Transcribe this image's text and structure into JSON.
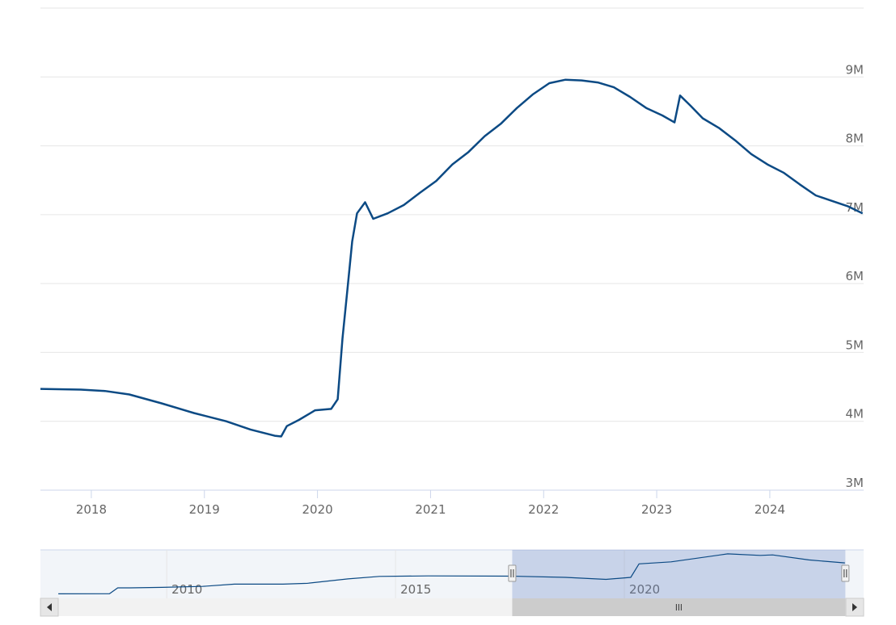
{
  "chart_data": {
    "type": "line",
    "x": [
      2017.55,
      2017.907,
      2018.121,
      2018.336,
      2018.621,
      2018.907,
      2019.193,
      2019.407,
      2019.621,
      2019.679,
      2019.729,
      2019.836,
      2019.979,
      2020.121,
      2020.179,
      2020.221,
      2020.264,
      2020.307,
      2020.35,
      2020.421,
      2020.493,
      2020.621,
      2020.764,
      2020.907,
      2021.05,
      2021.193,
      2021.336,
      2021.479,
      2021.621,
      2021.764,
      2021.907,
      2022.05,
      2022.193,
      2022.336,
      2022.479,
      2022.621,
      2022.764,
      2022.907,
      2023.05,
      2023.157,
      2023.207,
      2023.3,
      2023.407,
      2023.55,
      2023.693,
      2023.836,
      2023.979,
      2024.121,
      2024.264,
      2024.407,
      2024.55,
      2024.693,
      2024.821
    ],
    "series": [
      {
        "color": "#0c4a84",
        "values": [
          4470000,
          4460000,
          4440000,
          4390000,
          4260000,
          4120000,
          4000000,
          3880000,
          3790000,
          3780000,
          3930000,
          4020000,
          4160000,
          4180000,
          4320000,
          5200000,
          5900000,
          6610000,
          7020000,
          7180000,
          6940000,
          7020000,
          7140000,
          7320000,
          7490000,
          7730000,
          7910000,
          8140000,
          8320000,
          8550000,
          8750000,
          8910000,
          8960000,
          8950000,
          8920000,
          8850000,
          8710000,
          8550000,
          8440000,
          8340000,
          8730000,
          8580000,
          8400000,
          8260000,
          8080000,
          7880000,
          7730000,
          7610000,
          7440000,
          7280000,
          7200000,
          7120000,
          7020000
        ]
      }
    ],
    "xlim": [
      2017.55,
      2024.83
    ],
    "xticks": [
      2018,
      2019,
      2020,
      2021,
      2022,
      2023,
      2024
    ],
    "ylim": [
      3000000,
      10000000
    ],
    "yticks": [
      {
        "value": 3000000,
        "label": "3M"
      },
      {
        "value": 4000000,
        "label": "4M"
      },
      {
        "value": 5000000,
        "label": "5M"
      },
      {
        "value": 6000000,
        "label": "6M"
      },
      {
        "value": 7000000,
        "label": "7M"
      },
      {
        "value": 8000000,
        "label": "8M"
      },
      {
        "value": 9000000,
        "label": "9M"
      }
    ],
    "grid": true,
    "navigator": {
      "x": [
        2007.63,
        2008.75,
        2008.93,
        2009.2,
        2009.9,
        2010.78,
        2011.48,
        2012.54,
        2013.07,
        2013.96,
        2014.65,
        2015.71,
        2017.53,
        2018.71,
        2019.6,
        2020.14,
        2020.32,
        2021.02,
        2022.26,
        2022.97,
        2023.24,
        2024.03,
        2024.82
      ],
      "values": [
        900000,
        920000,
        2100000,
        2100000,
        2200000,
        2400000,
        2850000,
        2850000,
        3000000,
        3900000,
        4400000,
        4500000,
        4450000,
        4200000,
        3800000,
        4200000,
        6900000,
        7300000,
        8900000,
        8600000,
        8700000,
        7700000,
        7100000
      ],
      "xlim": [
        2007.24,
        2025.23
      ],
      "xticks": [
        2010,
        2015,
        2020
      ],
      "ylim": [
        0,
        9700000
      ]
    }
  }
}
